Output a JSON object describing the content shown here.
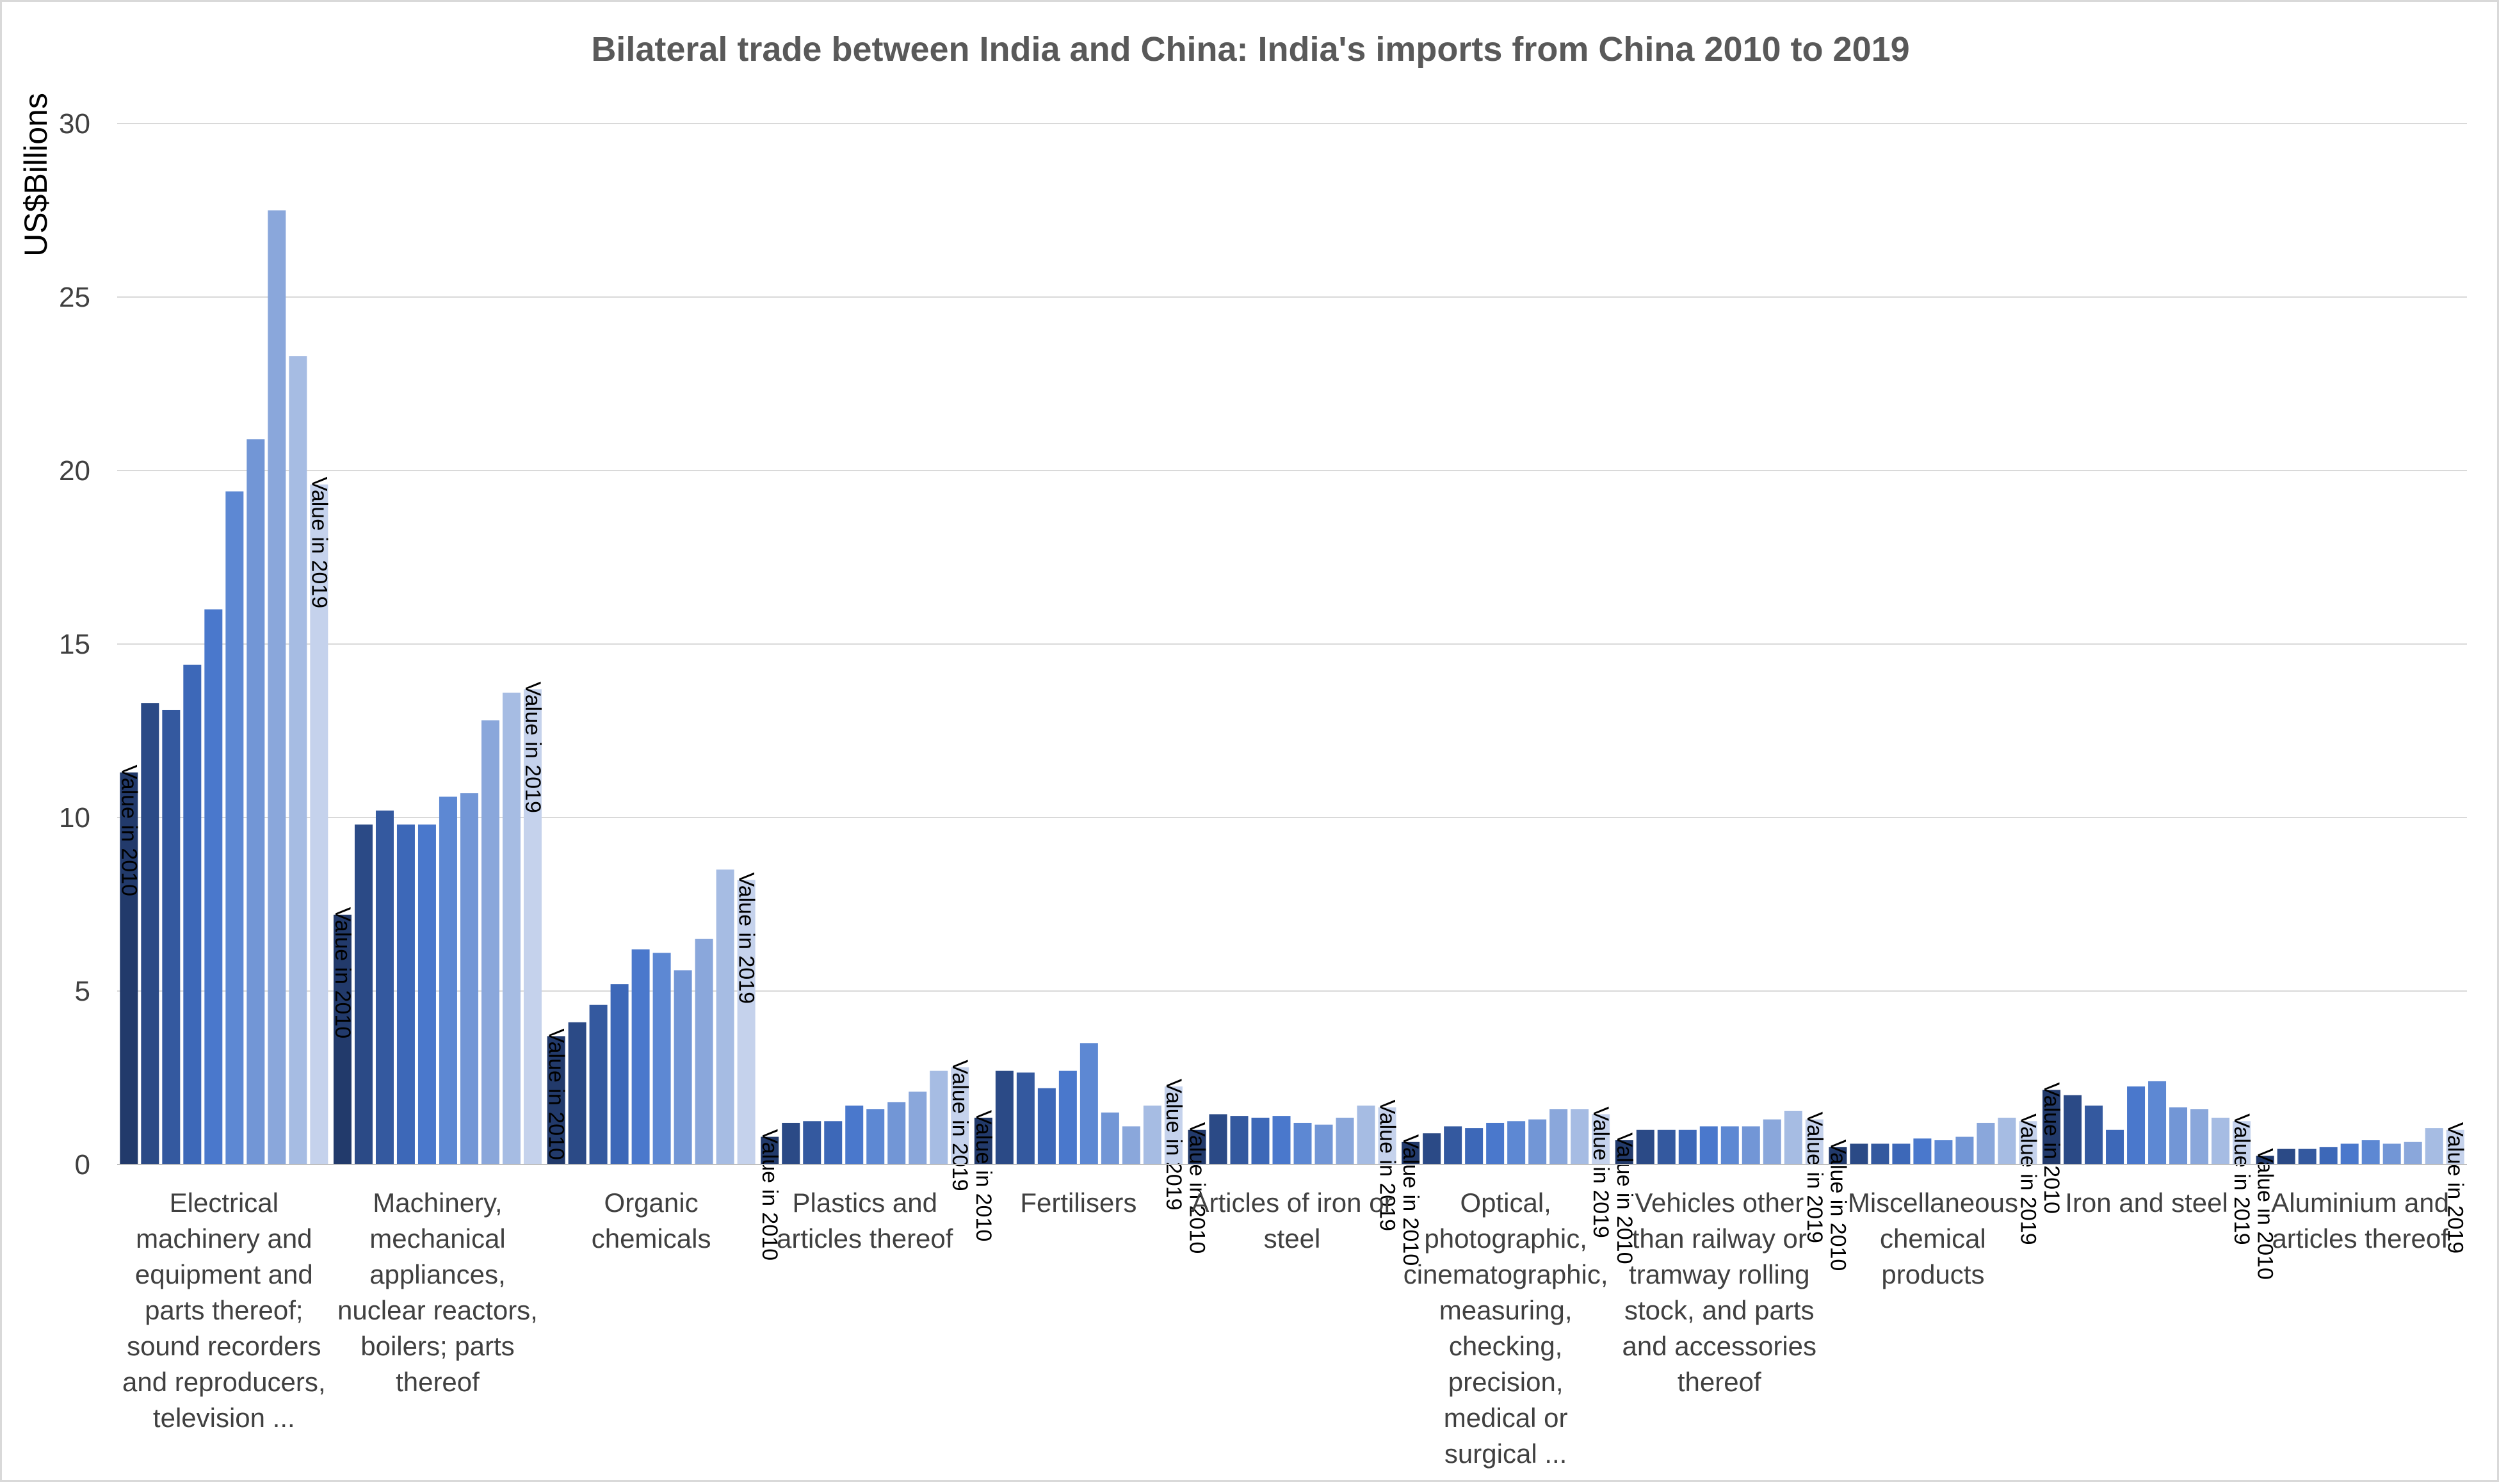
{
  "chart_data": {
    "type": "bar",
    "title": "Bilateral trade between India and China: India's imports from China 2010 to 2019",
    "ylabel": "US$Billions",
    "ylim": [
      0,
      30
    ],
    "yticks": [
      0,
      5,
      10,
      15,
      20,
      25,
      30
    ],
    "grid": true,
    "legend": "none",
    "series_colors": [
      "#223a6b",
      "#2b4a86",
      "#34599f",
      "#3d68b8",
      "#4a78cc",
      "#5d88d3",
      "#7296d6",
      "#8aa7db",
      "#a6bce3",
      "#c5d2ec"
    ],
    "categories": [
      {
        "label": [
          "Electrical",
          "machinery and",
          "equipment and",
          "parts thereof;",
          "sound recorders",
          "and reproducers,",
          "television ..."
        ],
        "values": [
          11.3,
          13.3,
          13.1,
          14.4,
          16.0,
          19.4,
          20.9,
          27.5,
          23.3,
          19.6
        ]
      },
      {
        "label": [
          "Machinery,",
          "mechanical",
          "appliances,",
          "nuclear reactors,",
          "boilers; parts",
          "thereof"
        ],
        "values": [
          7.2,
          9.8,
          10.2,
          9.8,
          9.8,
          10.6,
          10.7,
          12.8,
          13.6,
          13.7
        ]
      },
      {
        "label": [
          "Organic",
          "chemicals"
        ],
        "values": [
          3.7,
          4.1,
          4.6,
          5.2,
          6.2,
          6.1,
          5.6,
          6.5,
          8.5,
          8.2
        ]
      },
      {
        "label": [
          "Plastics and",
          "articles thereof"
        ],
        "values": [
          0.8,
          1.2,
          1.25,
          1.25,
          1.7,
          1.6,
          1.8,
          2.1,
          2.7,
          2.8
        ]
      },
      {
        "label": [
          "Fertilisers"
        ],
        "values": [
          1.35,
          2.7,
          2.65,
          2.2,
          2.7,
          3.5,
          1.5,
          1.1,
          1.7,
          2.25
        ]
      },
      {
        "label": [
          "Articles of iron or",
          "steel"
        ],
        "values": [
          1.0,
          1.45,
          1.4,
          1.35,
          1.4,
          1.2,
          1.15,
          1.35,
          1.7,
          1.65
        ]
      },
      {
        "label": [
          "Optical,",
          "photographic,",
          "cinematographic,",
          "measuring,",
          "checking,",
          "precision,",
          "medical or",
          "surgical ..."
        ],
        "values": [
          0.65,
          0.9,
          1.1,
          1.05,
          1.2,
          1.25,
          1.3,
          1.6,
          1.6,
          1.45
        ]
      },
      {
        "label": [
          "Vehicles other",
          "than railway or",
          "tramway rolling",
          "stock, and parts",
          "and accessories",
          "thereof"
        ],
        "values": [
          0.7,
          1.0,
          1.0,
          1.0,
          1.1,
          1.1,
          1.1,
          1.3,
          1.55,
          1.3
        ]
      },
      {
        "label": [
          "Miscellaneous",
          "chemical",
          "products"
        ],
        "values": [
          0.5,
          0.6,
          0.6,
          0.6,
          0.75,
          0.7,
          0.8,
          1.2,
          1.35,
          1.25
        ]
      },
      {
        "label": [
          "Iron and steel"
        ],
        "values": [
          2.15,
          2.0,
          1.7,
          1.0,
          2.25,
          2.4,
          1.65,
          1.6,
          1.35,
          1.25
        ]
      },
      {
        "label": [
          "Aluminium and",
          "articles thereof"
        ],
        "values": [
          0.25,
          0.45,
          0.45,
          0.5,
          0.6,
          0.7,
          0.6,
          0.65,
          1.05,
          1.0
        ]
      }
    ],
    "annotations": {
      "first": "Value in 2010",
      "last": "Value in 2019"
    }
  }
}
